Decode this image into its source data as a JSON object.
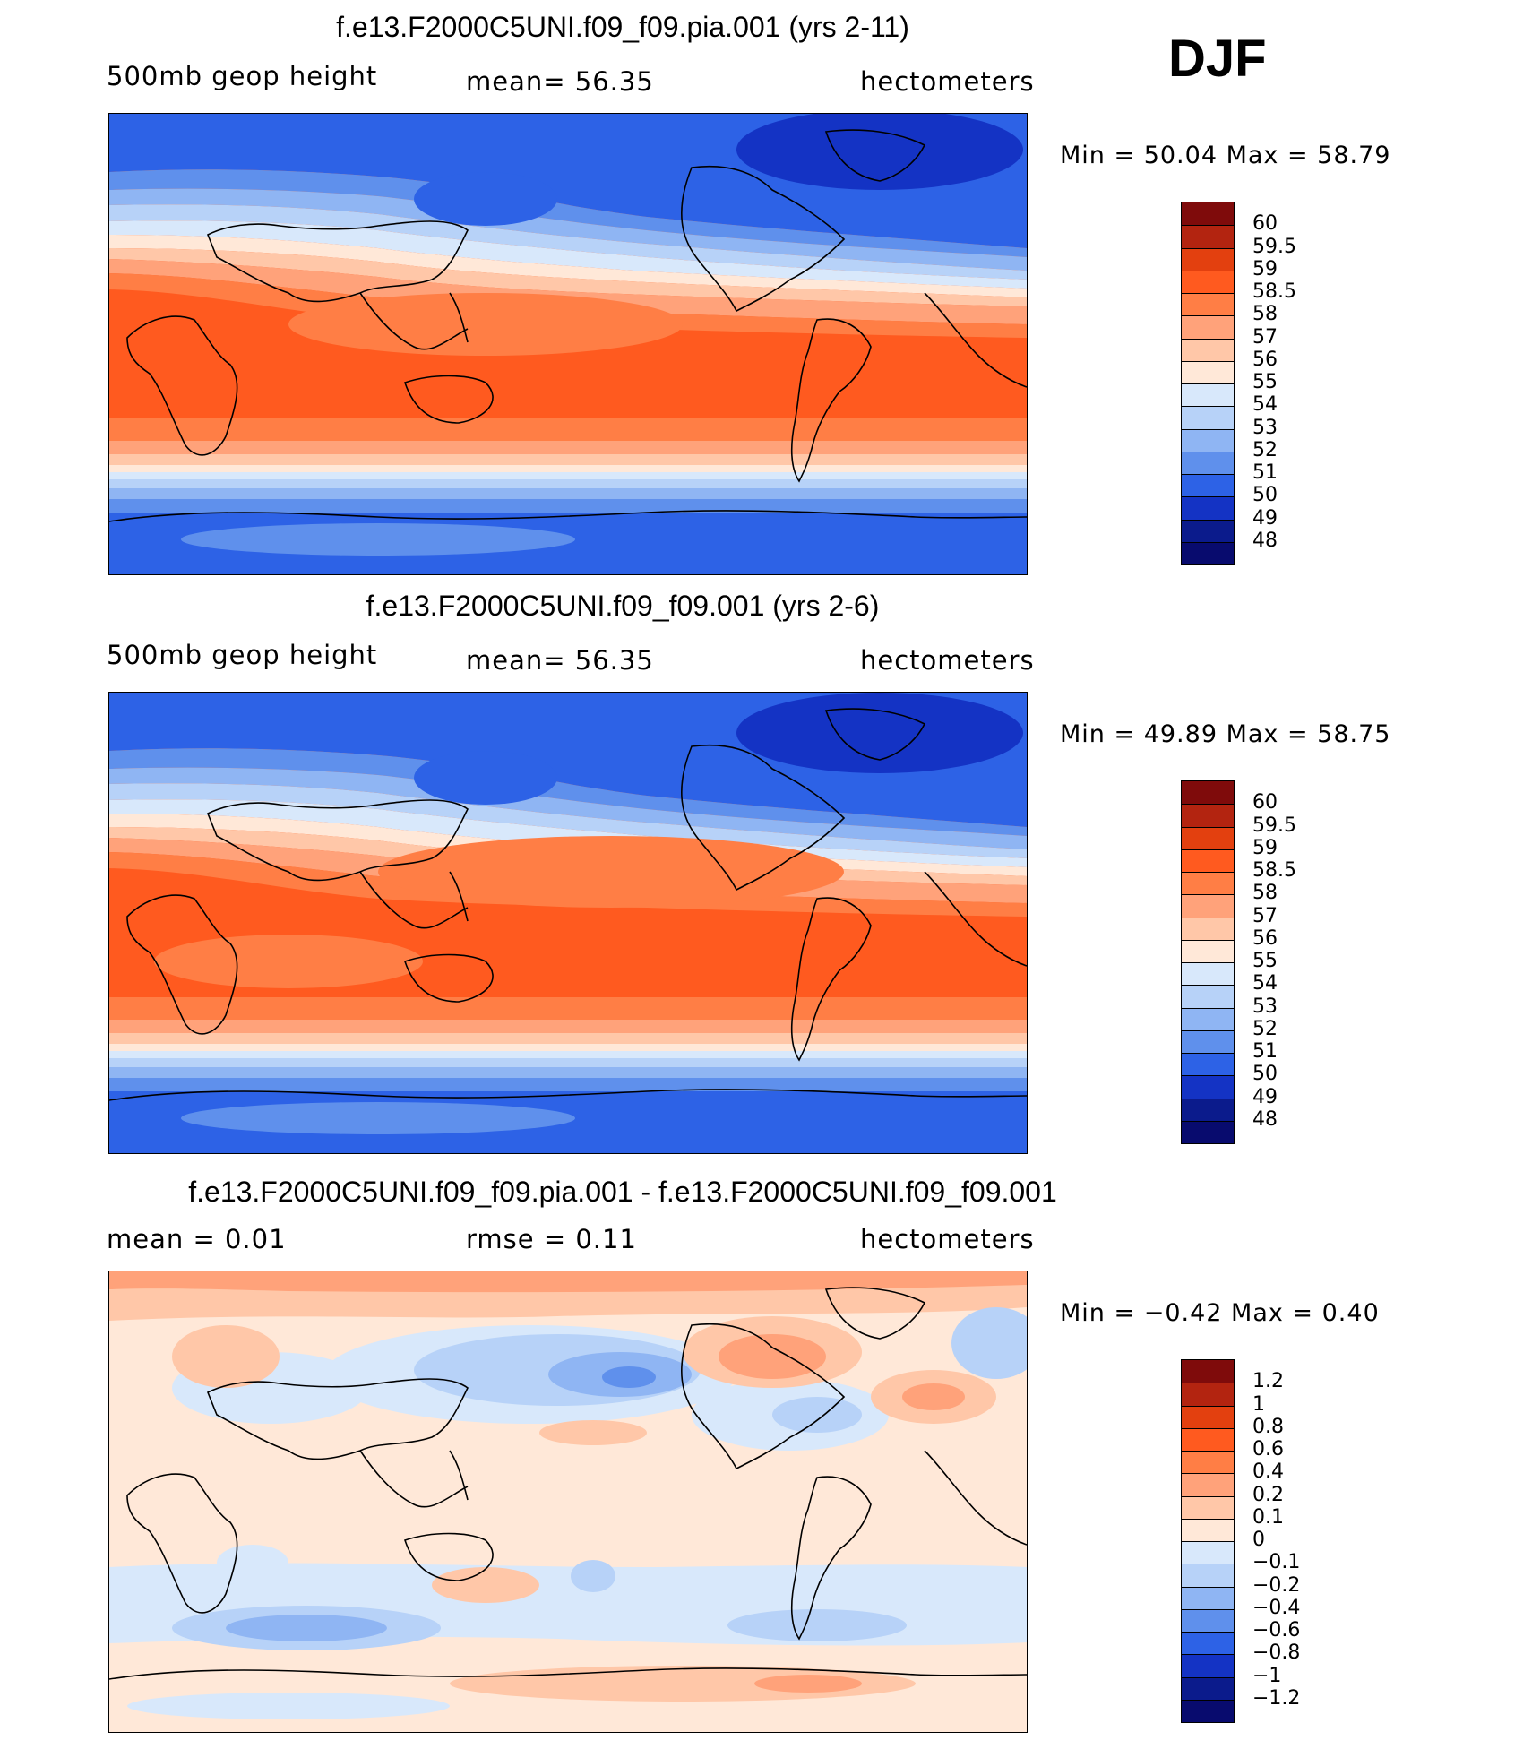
{
  "season": "DJF",
  "panels": [
    {
      "title": "f.e13.F2000C5UNI.f09_f09.pia.001 (yrs 2-11)",
      "left": "500mb geop height",
      "center": "mean=   56.35",
      "right": "hectometers",
      "minmax": "Min =    50.04  Max =    58.79",
      "legend": [
        "60",
        "59.5",
        "59",
        "58.5",
        "58",
        "57",
        "56",
        "55",
        "54",
        "53",
        "52",
        "51",
        "50",
        "49",
        "48"
      ],
      "palette": "field"
    },
    {
      "title": "f.e13.F2000C5UNI.f09_f09.001 (yrs 2-6)",
      "left": "500mb geop height",
      "center": "mean=   56.35",
      "right": "hectometers",
      "minmax": "Min =    49.89  Max =    58.75",
      "legend": [
        "60",
        "59.5",
        "59",
        "58.5",
        "58",
        "57",
        "56",
        "55",
        "54",
        "53",
        "52",
        "51",
        "50",
        "49",
        "48"
      ],
      "palette": "field"
    },
    {
      "title": "f.e13.F2000C5UNI.f09_f09.pia.001 - f.e13.F2000C5UNI.f09_f09.001",
      "left": "mean =     0.01",
      "center": "rmse =     0.11",
      "right": "hectometers",
      "minmax": "Min =   −0.42  Max =     0.40",
      "legend": [
        "1.2",
        "1",
        "0.8",
        "0.6",
        "0.4",
        "0.2",
        "0.1",
        "0",
        "−0.1",
        "−0.2",
        "−0.4",
        "−0.6",
        "−0.8",
        "−1",
        "−1.2"
      ],
      "palette": "diff"
    }
  ],
  "colors": {
    "field": [
      "#7f0b0b",
      "#b32410",
      "#e3400f",
      "#ff5a1f",
      "#ff7e45",
      "#ffa27a",
      "#ffc7a8",
      "#ffe8d8",
      "#d8e8fb",
      "#b7d2f8",
      "#8fb5f3",
      "#5f90ec",
      "#2d62e6",
      "#1433c4",
      "#0b1b8c",
      "#080b6e"
    ],
    "diff": [
      "#7f0b0b",
      "#b32410",
      "#e3400f",
      "#ff5a1f",
      "#ff7e45",
      "#ffa27a",
      "#ffc7a8",
      "#ffe8d8",
      "#d8e8fb",
      "#b7d2f8",
      "#8fb5f3",
      "#5f90ec",
      "#2d62e6",
      "#1433c4",
      "#0b1b8c",
      "#080b6e"
    ]
  }
}
